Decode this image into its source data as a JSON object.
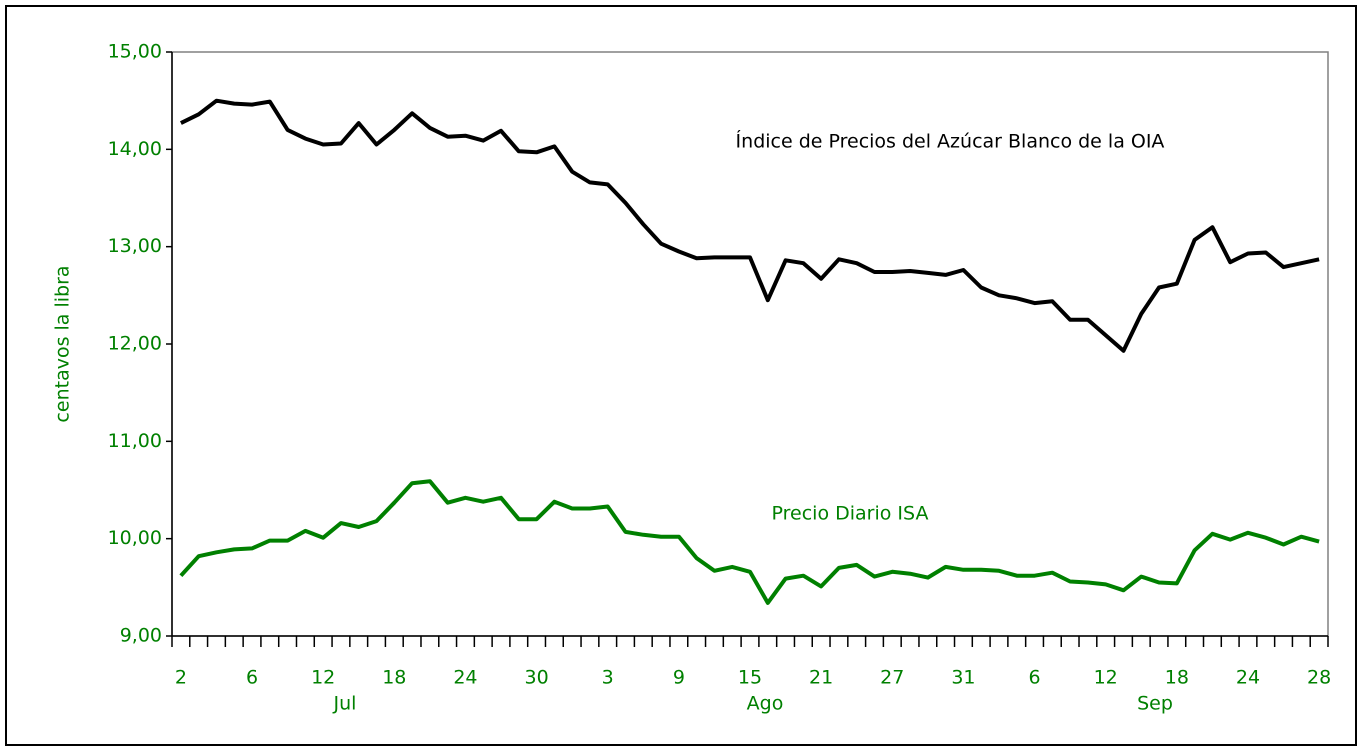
{
  "chart_data": {
    "type": "line",
    "ylabel": "centavos la libra",
    "categories": [
      "2",
      null,
      null,
      null,
      "6",
      null,
      null,
      null,
      "12",
      null,
      null,
      null,
      "18",
      null,
      null,
      null,
      "24",
      null,
      null,
      null,
      "30",
      null,
      null,
      null,
      "3",
      null,
      null,
      null,
      "9",
      null,
      null,
      null,
      "15",
      null,
      null,
      null,
      "21",
      null,
      null,
      null,
      "27",
      null,
      null,
      null,
      "31",
      null,
      null,
      null,
      "6",
      null,
      null,
      null,
      "12",
      null,
      null,
      null,
      "18",
      null,
      null,
      null,
      "24",
      null,
      null,
      null,
      "28"
    ],
    "months": [
      "Jul",
      "Ago",
      "Sep"
    ],
    "ylim": [
      9,
      15
    ],
    "yticks": [
      {
        "value": 9,
        "label": "9,00"
      },
      {
        "value": 10,
        "label": "10,00"
      },
      {
        "value": 11,
        "label": "11,00"
      },
      {
        "value": 12,
        "label": "12,00"
      },
      {
        "value": 13,
        "label": "13,00"
      },
      {
        "value": 14,
        "label": "14,00"
      },
      {
        "value": 15,
        "label": "15,00"
      }
    ],
    "series": [
      {
        "name": "Índice de Precios del Azúcar Blanco de la OIA",
        "color": "#000000",
        "values": [
          14.27,
          14.36,
          14.5,
          14.47,
          14.46,
          14.49,
          14.2,
          14.11,
          14.05,
          14.06,
          14.27,
          14.05,
          14.2,
          14.37,
          14.22,
          14.13,
          14.14,
          14.09,
          14.19,
          13.98,
          13.97,
          14.03,
          13.77,
          13.66,
          13.64,
          13.45,
          13.23,
          13.03,
          12.95,
          12.88,
          12.89,
          12.89,
          12.89,
          12.45,
          12.86,
          12.83,
          12.67,
          12.87,
          12.83,
          12.74,
          12.74,
          12.75,
          12.73,
          12.71,
          12.76,
          12.58,
          12.5,
          12.47,
          12.42,
          12.44,
          12.25,
          12.25,
          12.09,
          11.93,
          12.31,
          12.58,
          12.62,
          13.07,
          13.2,
          12.84,
          12.93,
          12.94,
          12.79,
          12.83,
          12.87
        ]
      },
      {
        "name": "Precio Diario ISA",
        "color": "#008000",
        "values": [
          9.62,
          9.82,
          9.86,
          9.89,
          9.9,
          9.98,
          9.98,
          10.08,
          10.01,
          10.16,
          10.12,
          10.18,
          10.37,
          10.57,
          10.59,
          10.37,
          10.42,
          10.38,
          10.42,
          10.2,
          10.2,
          10.38,
          10.31,
          10.31,
          10.33,
          10.07,
          10.04,
          10.02,
          10.02,
          9.8,
          9.67,
          9.71,
          9.66,
          9.34,
          9.59,
          9.62,
          9.51,
          9.7,
          9.73,
          9.61,
          9.66,
          9.64,
          9.6,
          9.71,
          9.68,
          9.68,
          9.67,
          9.62,
          9.62,
          9.65,
          9.56,
          9.55,
          9.53,
          9.47,
          9.61,
          9.55,
          9.54,
          9.88,
          10.05,
          9.99,
          10.06,
          10.01,
          9.94,
          10.02,
          9.97
        ]
      }
    ]
  }
}
